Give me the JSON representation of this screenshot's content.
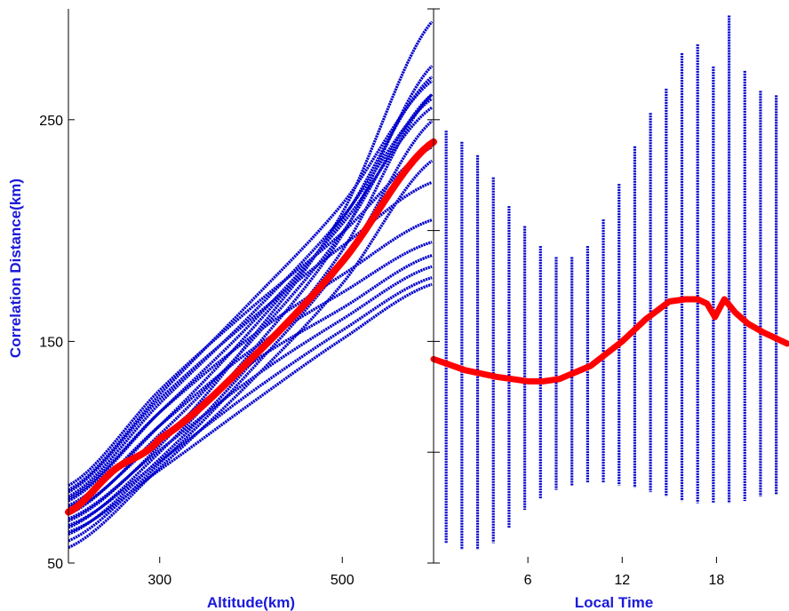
{
  "chart_data": [
    {
      "type": "scatter",
      "title": "",
      "xlabel": "Altitude(km)",
      "ylabel": "Correlation Distance(km)",
      "xlim": [
        200,
        600
      ],
      "ylim": [
        50,
        300
      ],
      "x_ticks": [
        "300",
        "500"
      ],
      "x_tick_values": [
        300,
        500
      ],
      "y_ticks": [
        "50",
        "150",
        "250"
      ],
      "y_tick_values": [
        50,
        150,
        250
      ],
      "grid": false,
      "colors": {
        "data": "#0000cc",
        "mean": "#ff0000"
      },
      "series": [
        {
          "x": [
            200,
            300,
            400,
            500,
            600
          ],
          "values": [
            57,
            93,
            132,
            176,
            232
          ]
        },
        {
          "x": [
            200,
            300,
            400,
            500,
            600
          ],
          "values": [
            60,
            95,
            137,
            185,
            250
          ]
        },
        {
          "x": [
            200,
            300,
            400,
            500,
            600
          ],
          "values": [
            63,
            97,
            140,
            191,
            262
          ]
        },
        {
          "x": [
            200,
            300,
            400,
            500,
            600
          ],
          "values": [
            66,
            100,
            145,
            198,
            275
          ]
        },
        {
          "x": [
            200,
            300,
            400,
            500,
            600
          ],
          "values": [
            69,
            103,
            151,
            208,
            295
          ]
        },
        {
          "x": [
            200,
            300,
            400,
            500,
            600
          ],
          "values": [
            72,
            108,
            150,
            199,
            262
          ]
        },
        {
          "x": [
            200,
            300,
            400,
            500,
            600
          ],
          "values": [
            75,
            112,
            155,
            205,
            270
          ]
        },
        {
          "x": [
            200,
            300,
            400,
            500,
            600
          ],
          "values": [
            78,
            118,
            158,
            203,
            256
          ]
        },
        {
          "x": [
            200,
            300,
            400,
            500,
            600
          ],
          "values": [
            80,
            122,
            162,
            206,
            260
          ]
        },
        {
          "x": [
            200,
            300,
            400,
            500,
            600
          ],
          "values": [
            83,
            126,
            168,
            212,
            268
          ]
        },
        {
          "x": [
            200,
            300,
            400,
            500,
            600
          ],
          "values": [
            85,
            128,
            165,
            199,
            238
          ]
        },
        {
          "x": [
            200,
            300,
            400,
            500,
            600
          ],
          "values": [
            82,
            124,
            160,
            193,
            222
          ]
        },
        {
          "x": [
            200,
            300,
            400,
            500,
            600
          ],
          "values": [
            79,
            118,
            152,
            180,
            205
          ]
        },
        {
          "x": [
            200,
            300,
            400,
            500,
            600
          ],
          "values": [
            76,
            112,
            146,
            172,
            195
          ]
        },
        {
          "x": [
            200,
            300,
            400,
            500,
            600
          ],
          "values": [
            73,
            106,
            140,
            165,
            189
          ]
        },
        {
          "x": [
            200,
            300,
            400,
            500,
            600
          ],
          "values": [
            70,
            101,
            133,
            160,
            184
          ]
        },
        {
          "x": [
            200,
            300,
            400,
            500,
            600
          ],
          "values": [
            67,
            96,
            127,
            155,
            179
          ]
        },
        {
          "x": [
            200,
            300,
            400,
            500,
            600
          ],
          "values": [
            64,
            92,
            122,
            151,
            176
          ]
        }
      ],
      "mean_line": {
        "x": [
          200,
          250,
          300,
          400,
          500,
          600
        ],
        "values": [
          73,
          92,
          106,
          142,
          186,
          240
        ]
      }
    },
    {
      "type": "scatter",
      "title": "",
      "xlabel": "Local Time",
      "ylabel": "",
      "xlim": [
        0,
        22.5
      ],
      "ylim": [
        50,
        300
      ],
      "x_ticks": [
        "6",
        "12",
        "18"
      ],
      "x_tick_values": [
        6,
        12,
        18
      ],
      "y_tick_values": [
        50,
        100,
        150,
        200,
        250,
        300
      ],
      "grid": false,
      "colors": {
        "data": "#0000cc",
        "mean": "#ff0000"
      },
      "ranges": [
        {
          "x": 0.8,
          "min": 59,
          "max": 245
        },
        {
          "x": 1.8,
          "min": 56,
          "max": 240
        },
        {
          "x": 2.8,
          "min": 56,
          "max": 234
        },
        {
          "x": 3.8,
          "min": 59,
          "max": 224
        },
        {
          "x": 4.8,
          "min": 66,
          "max": 211
        },
        {
          "x": 5.8,
          "min": 74,
          "max": 202
        },
        {
          "x": 6.8,
          "min": 79,
          "max": 193
        },
        {
          "x": 7.8,
          "min": 83,
          "max": 188
        },
        {
          "x": 8.8,
          "min": 85,
          "max": 188
        },
        {
          "x": 9.8,
          "min": 86,
          "max": 193
        },
        {
          "x": 10.8,
          "min": 86,
          "max": 205
        },
        {
          "x": 11.8,
          "min": 85,
          "max": 221
        },
        {
          "x": 12.8,
          "min": 84,
          "max": 238
        },
        {
          "x": 13.8,
          "min": 82,
          "max": 253
        },
        {
          "x": 14.8,
          "min": 80,
          "max": 264
        },
        {
          "x": 15.8,
          "min": 78,
          "max": 280
        },
        {
          "x": 16.8,
          "min": 77,
          "max": 284
        },
        {
          "x": 17.8,
          "min": 77,
          "max": 274
        },
        {
          "x": 18.8,
          "min": 77,
          "max": 297
        },
        {
          "x": 19.8,
          "min": 78,
          "max": 272
        },
        {
          "x": 20.8,
          "min": 80,
          "max": 263
        },
        {
          "x": 21.8,
          "min": 81,
          "max": 261
        }
      ],
      "mean_line": {
        "x": [
          0,
          2,
          4,
          6,
          7,
          8,
          10,
          12,
          13.5,
          15,
          16,
          16.8,
          17.4,
          17.9,
          18.5,
          19.2,
          20,
          21,
          22.5
        ],
        "values": [
          142,
          137,
          134,
          132,
          132,
          133,
          139,
          150,
          160,
          168,
          169,
          169,
          167,
          161,
          169,
          163,
          158,
          154,
          149
        ]
      }
    }
  ]
}
